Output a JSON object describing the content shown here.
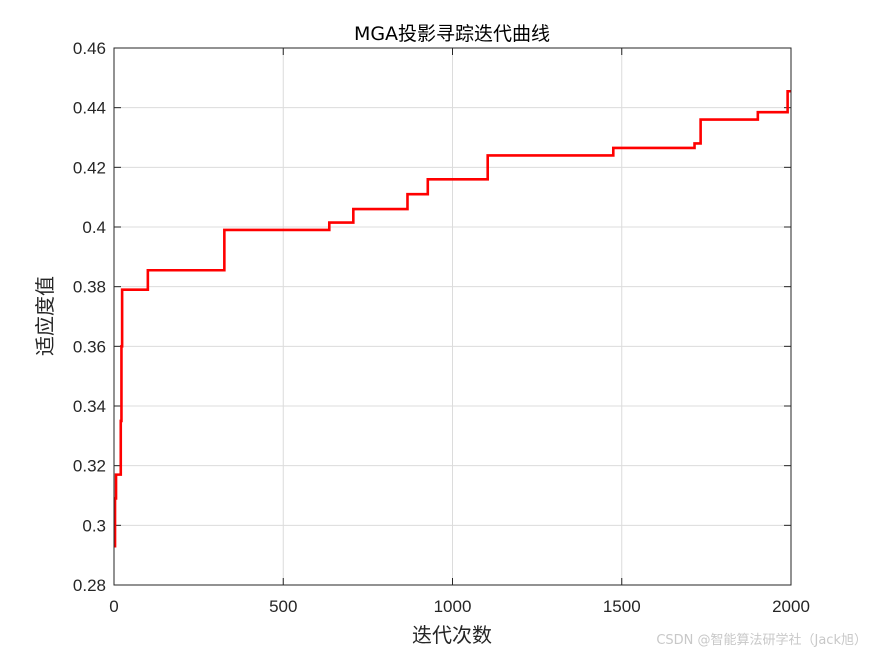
{
  "chart_data": {
    "type": "line",
    "title": "MGA投影寻踪迭代曲线",
    "xlabel": "迭代次数",
    "ylabel": "适应度值",
    "xlim": [
      0,
      2000
    ],
    "ylim": [
      0.28,
      0.46
    ],
    "xticks": [
      0,
      500,
      1000,
      1500,
      2000
    ],
    "xtick_labels": [
      "0",
      "500",
      "1000",
      "1500",
      "2000"
    ],
    "yticks": [
      0.28,
      0.3,
      0.32,
      0.34,
      0.36,
      0.38,
      0.4,
      0.42,
      0.44,
      0.46
    ],
    "ytick_labels": [
      "0.28",
      "0.3",
      "0.32",
      "0.34",
      "0.36",
      "0.38",
      "0.4",
      "0.42",
      "0.44",
      "0.46"
    ],
    "grid": true,
    "line_color": "#ff0000",
    "series": [
      {
        "style": "step",
        "x": [
          1,
          3,
          6,
          8,
          10,
          15,
          20,
          22,
          24,
          28,
          100,
          326,
          636,
          707,
          867,
          927,
          1104,
          1475,
          1715,
          1733,
          1902,
          1990,
          2000
        ],
        "y": [
          0.293,
          0.309,
          0.317,
          0.317,
          0.317,
          0.317,
          0.335,
          0.36,
          0.379,
          0.379,
          0.3855,
          0.399,
          0.4015,
          0.406,
          0.411,
          0.416,
          0.424,
          0.4265,
          0.428,
          0.436,
          0.4385,
          0.4455,
          0.4455
        ]
      }
    ]
  },
  "watermark": "CSDN @智能算法研学社（Jack旭）"
}
